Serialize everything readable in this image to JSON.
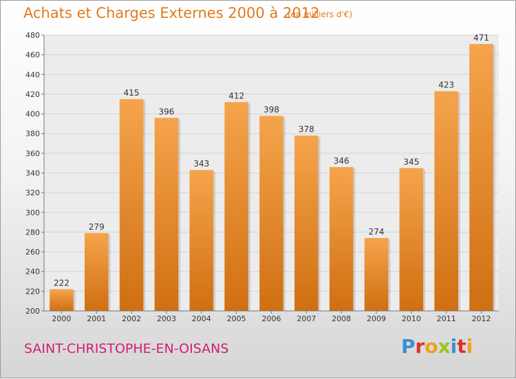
{
  "header": {
    "title": "Achats et Charges Externes 2000 à 2012",
    "subtitle": "(en milliers d'€)"
  },
  "footer": {
    "place": "SAINT-CHRISTOPHE-EN-OISANS",
    "logo_text": "Proxiti",
    "logo_colors": [
      "#3a8fd6",
      "#e0302a",
      "#f0a020",
      "#9bc31c",
      "#3a8fd6",
      "#e0302a",
      "#f0a020"
    ]
  },
  "colors": {
    "bar_top": "#f5a44c",
    "bar_bottom": "#d06f12",
    "accent": "#e07a1c",
    "place": "#d0206e"
  },
  "chart_data": {
    "type": "bar",
    "title": "Achats et Charges Externes 2000 à 2012",
    "subtitle": "(en milliers d'€)",
    "categories": [
      "2000",
      "2001",
      "2002",
      "2003",
      "2004",
      "2005",
      "2006",
      "2007",
      "2008",
      "2009",
      "2010",
      "2011",
      "2012"
    ],
    "values": [
      222,
      279,
      415,
      396,
      343,
      412,
      398,
      378,
      346,
      274,
      345,
      423,
      471
    ],
    "ylim": [
      200,
      480
    ],
    "yticks": [
      200,
      220,
      240,
      260,
      280,
      300,
      320,
      340,
      360,
      380,
      400,
      420,
      440,
      460,
      480
    ],
    "grid": true,
    "legend": "none"
  }
}
